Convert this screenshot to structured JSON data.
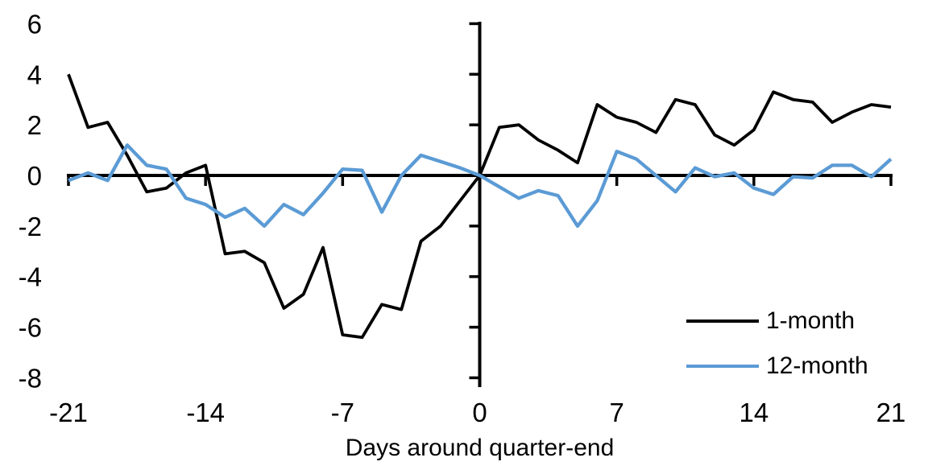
{
  "chart_data": {
    "type": "line",
    "title": "",
    "xlabel": "Days around quarter-end",
    "ylabel": "",
    "xlim": [
      -21,
      21
    ],
    "ylim": [
      -8.4,
      6.1
    ],
    "x_ticks": [
      -21,
      -14,
      -7,
      0,
      7,
      14,
      21
    ],
    "y_ticks": [
      6,
      4,
      2,
      0,
      -2,
      -4,
      -6,
      -8
    ],
    "grid": false,
    "axis_color": "#000000",
    "legend_position": "inside-bottom-right",
    "x": [
      -21,
      -20,
      -19,
      -18,
      -17,
      -16,
      -15,
      -14,
      -13,
      -12,
      -11,
      -10,
      -9,
      -8,
      -7,
      -6,
      -5,
      -4,
      -3,
      -2,
      -1,
      0,
      1,
      2,
      3,
      4,
      5,
      6,
      7,
      8,
      9,
      10,
      11,
      12,
      13,
      14,
      15,
      16,
      17,
      18,
      19,
      20,
      21
    ],
    "series": [
      {
        "name": "1-month",
        "color": "#000000",
        "values": [
          4.0,
          1.9,
          2.1,
          0.8,
          -0.65,
          -0.5,
          0.1,
          0.4,
          -3.1,
          -3.0,
          -3.45,
          -5.25,
          -4.7,
          -2.85,
          -6.3,
          -6.4,
          -5.1,
          -5.3,
          -2.6,
          -2.0,
          -1.0,
          0.0,
          1.9,
          2.0,
          1.4,
          1.0,
          0.5,
          2.8,
          2.3,
          2.1,
          1.7,
          3.0,
          2.8,
          1.6,
          1.2,
          1.8,
          3.3,
          3.0,
          2.9,
          2.1,
          2.5,
          2.8,
          2.7
        ]
      },
      {
        "name": "12-month",
        "color": "#5B9BD5",
        "values": [
          -0.2,
          0.1,
          -0.2,
          1.2,
          0.4,
          0.25,
          -0.9,
          -1.15,
          -1.65,
          -1.3,
          -2.0,
          -1.15,
          -1.55,
          -0.7,
          0.25,
          0.2,
          -1.45,
          0.0,
          0.8,
          0.55,
          0.3,
          0.0,
          -0.45,
          -0.9,
          -0.6,
          -0.8,
          -2.0,
          -1.0,
          0.95,
          0.65,
          0.0,
          -0.65,
          0.3,
          -0.05,
          0.1,
          -0.5,
          -0.75,
          -0.05,
          -0.1,
          0.4,
          0.4,
          -0.05,
          0.65
        ]
      }
    ]
  },
  "legend": {
    "items": [
      {
        "label": "1-month",
        "color": "#000000"
      },
      {
        "label": "12-month",
        "color": "#5B9BD5"
      }
    ]
  },
  "axis_titles": {
    "x": "Days around quarter-end"
  }
}
